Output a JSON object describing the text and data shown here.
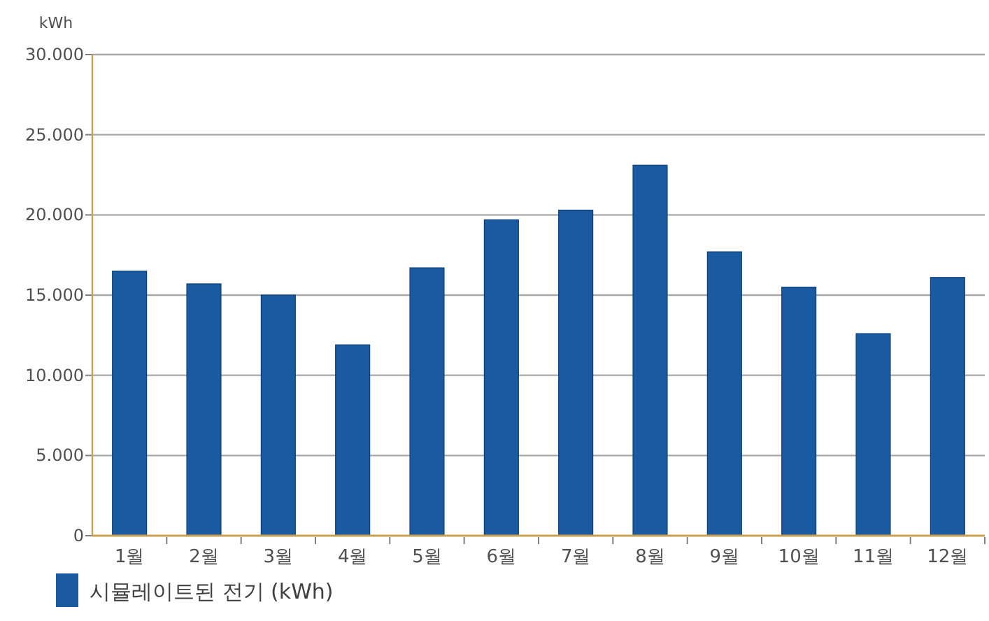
{
  "chart_data": {
    "type": "bar",
    "ylabel": "kWh",
    "categories": [
      "1월",
      "2월",
      "3월",
      "4월",
      "5월",
      "6월",
      "7월",
      "8월",
      "9월",
      "10월",
      "11월",
      "12월"
    ],
    "series": [
      {
        "name": "시뮬레이트된 전기 (kWh)",
        "color": "#1a5aa0",
        "values": [
          16500,
          15700,
          15000,
          11900,
          16700,
          19700,
          20300,
          23100,
          17700,
          15500,
          12600,
          16100
        ]
      }
    ],
    "ylim": [
      0,
      30000
    ],
    "yticks": [
      {
        "value": 0,
        "label": "0"
      },
      {
        "value": 5000,
        "label": "5.000"
      },
      {
        "value": 10000,
        "label": "10.000"
      },
      {
        "value": 15000,
        "label": "15.000"
      },
      {
        "value": 20000,
        "label": "20.000"
      },
      {
        "value": 25000,
        "label": "25.000"
      },
      {
        "value": 30000,
        "label": "30.000"
      }
    ],
    "grid": "y",
    "legend": "bottom left"
  }
}
